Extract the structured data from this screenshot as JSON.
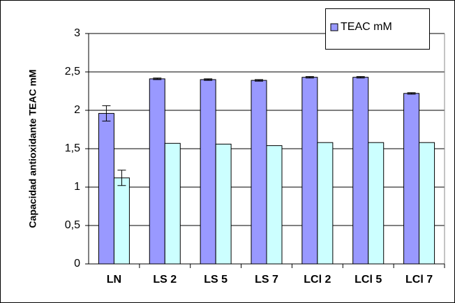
{
  "chart_data": {
    "type": "bar",
    "y_label": "Capacidad antioxidante TEAC mM",
    "categories": [
      "LN",
      "LS 2",
      "LS 5",
      "LS 7",
      "LCl 2",
      "LCl 5",
      "LCl 7"
    ],
    "series": [
      {
        "name": "TEAC mM",
        "color": "#9999ff",
        "values": [
          1.96,
          2.41,
          2.4,
          2.39,
          2.43,
          2.43,
          2.22
        ],
        "errors": [
          0.1,
          0.01,
          0.01,
          0.01,
          0.01,
          0.01,
          0.01
        ]
      },
      {
        "color": "#ccffff",
        "values": [
          1.12,
          1.57,
          1.56,
          1.54,
          1.58,
          1.58,
          1.58
        ],
        "errors": [
          0.1,
          null,
          null,
          null,
          null,
          null,
          null
        ]
      }
    ],
    "ylim": [
      0,
      3
    ],
    "yticks": [
      0,
      {
        "value": 0.5,
        "label": "0,5"
      },
      1,
      {
        "value": 1.5,
        "label": "1,5"
      },
      2,
      {
        "value": 2.5,
        "label": "2,5"
      },
      3
    ],
    "grid": true,
    "legend": "top-right"
  }
}
